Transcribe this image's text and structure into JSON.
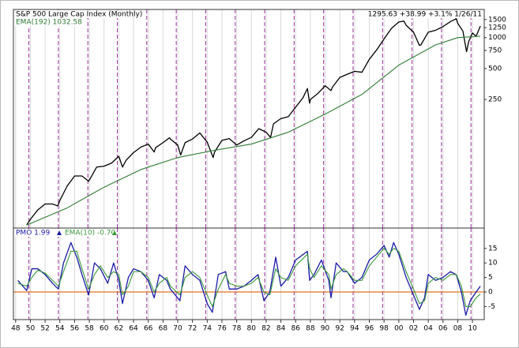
{
  "chart_data": [
    {
      "type": "line",
      "log": true,
      "annotation": "1295.63 +38.99 +3.1% 1/26/11",
      "xlim": [
        1947.7,
        2011.6
      ],
      "ylim": [
        14,
        1880
      ],
      "yticks": [
        250,
        500,
        750,
        1000,
        1250,
        1500
      ],
      "cycle_lines": [
        1949.8,
        1953.8,
        1957.8,
        1961.8,
        1965.8,
        1969.8,
        1973.8,
        1977.8,
        1981.8,
        1985.8,
        1989.8,
        1993.8,
        1997.8,
        2001.8,
        2005.8,
        2009.8
      ],
      "cycle_color": "#9b2d9b",
      "series": [
        {
          "name": "S&P 500 Large Cap Index (Monthly)",
          "color": "#000000",
          "x": [
            1949.5,
            1950,
            1951,
            1952,
            1953,
            1953.7,
            1954,
            1955,
            1956,
            1957,
            1957.9,
            1958,
            1959,
            1960,
            1961,
            1962,
            1962.5,
            1963,
            1964,
            1965,
            1966,
            1966.8,
            1967,
            1968,
            1968.9,
            1969,
            1970,
            1970.4,
            1971,
            1972,
            1973,
            1974,
            1974.8,
            1975,
            1976,
            1977,
            1978,
            1979,
            1980,
            1981,
            1982,
            1982.6,
            1983,
            1984,
            1985,
            1986,
            1987,
            1987.6,
            1987.9,
            1988,
            1989,
            1990,
            1990.8,
            1991,
            1992,
            1993,
            1994,
            1995,
            1996,
            1997,
            1998,
            1999,
            2000,
            2000.7,
            2001,
            2002,
            2002.8,
            2003,
            2004,
            2005,
            2006,
            2007,
            2007.8,
            2008,
            2008.7,
            2009.2,
            2009.5,
            2010,
            2010.5,
            2011.07
          ],
          "values": [
            15,
            17,
            21,
            24,
            24,
            23,
            26,
            36,
            45,
            45,
            40,
            41,
            55,
            56,
            60,
            70,
            55,
            64,
            76,
            86,
            92,
            77,
            85,
            95,
            106,
            103,
            90,
            72,
            95,
            103,
            118,
            96,
            68,
            77,
            100,
            104,
            90,
            99,
            107,
            130,
            120,
            107,
            145,
            163,
            170,
            210,
            260,
            320,
            230,
            250,
            285,
            340,
            305,
            330,
            410,
            440,
            470,
            460,
            615,
            760,
            970,
            1230,
            1420,
            1450,
            1320,
            1130,
            840,
            850,
            1130,
            1180,
            1280,
            1430,
            1530,
            1380,
            1160,
            730,
            920,
            1110,
            1030,
            1295.63
          ]
        },
        {
          "name": "EMA(192) 1032.58",
          "color": "#2e7d32",
          "x": [
            1949.5,
            1950,
            1955,
            1960,
            1965,
            1970,
            1975,
            1980,
            1985,
            1990,
            1995,
            2000,
            2005,
            2008,
            2011.07
          ],
          "values": [
            15,
            15.5,
            22,
            35,
            52,
            68,
            80,
            92,
            120,
            180,
            280,
            540,
            850,
            1000,
            1032.58
          ]
        }
      ]
    },
    {
      "type": "line",
      "xlim": [
        1947.7,
        2011.6
      ],
      "ylim": [
        -9.5,
        22
      ],
      "xticks": [
        {
          "value": 1948,
          "label": "48"
        },
        {
          "value": 1950,
          "label": "50"
        },
        {
          "value": 1952,
          "label": "52"
        },
        {
          "value": 1954,
          "label": "54"
        },
        {
          "value": 1956,
          "label": "56"
        },
        {
          "value": 1958,
          "label": "58"
        },
        {
          "value": 1960,
          "label": "60"
        },
        {
          "value": 1962,
          "label": "62"
        },
        {
          "value": 1964,
          "label": "64"
        },
        {
          "value": 1966,
          "label": "66"
        },
        {
          "value": 1968,
          "label": "68"
        },
        {
          "value": 1970,
          "label": "70"
        },
        {
          "value": 1972,
          "label": "72"
        },
        {
          "value": 1974,
          "label": "74"
        },
        {
          "value": 1976,
          "label": "76"
        },
        {
          "value": 1978,
          "label": "78"
        },
        {
          "value": 1980,
          "label": "80"
        },
        {
          "value": 1982,
          "label": "82"
        },
        {
          "value": 1984,
          "label": "84"
        },
        {
          "value": 1986,
          "label": "86"
        },
        {
          "value": 1988,
          "label": "88"
        },
        {
          "value": 1990,
          "label": "90"
        },
        {
          "value": 1992,
          "label": "92"
        },
        {
          "value": 1994,
          "label": "94"
        },
        {
          "value": 1996,
          "label": "96"
        },
        {
          "value": 1998,
          "label": "98"
        },
        {
          "value": 2000,
          "label": "00"
        },
        {
          "value": 2002,
          "label": "02"
        },
        {
          "value": 2004,
          "label": "04"
        },
        {
          "value": 2006,
          "label": "06"
        },
        {
          "value": 2008,
          "label": "08"
        },
        {
          "value": 2010,
          "label": "10"
        }
      ],
      "yticks": [
        -5,
        0,
        5,
        10,
        15
      ],
      "zero_line_color": "#e07020",
      "x": [
        1948.3,
        1949.5,
        1950.2,
        1951,
        1952,
        1953,
        1953.8,
        1954.5,
        1955.5,
        1956.3,
        1957,
        1957.9,
        1958.7,
        1959.5,
        1960.5,
        1961.3,
        1962,
        1962.5,
        1963.3,
        1964,
        1965,
        1966,
        1966.8,
        1967.5,
        1968.5,
        1969,
        1970.3,
        1971,
        1972,
        1973,
        1974,
        1974.7,
        1975.5,
        1976.5,
        1977,
        1978,
        1979,
        1980,
        1980.9,
        1981.7,
        1982.5,
        1983.3,
        1984,
        1985,
        1986,
        1987.6,
        1987.9,
        1988.5,
        1989.5,
        1990.5,
        1990.8,
        1991.5,
        1992.5,
        1993,
        1994,
        1995,
        1996,
        1997,
        1998,
        1998.7,
        1999.3,
        2000,
        2001,
        2002,
        2002.8,
        2003.5,
        2004,
        2005,
        2006,
        2007,
        2007.8,
        2008.5,
        2009.1,
        2009.7,
        2010.5,
        2011.07
      ],
      "series": [
        {
          "name": "PMO 1.99",
          "color": "#1a1aa8",
          "values": [
            4,
            0.5,
            8,
            8,
            6,
            3,
            1,
            10,
            17,
            12,
            6,
            -1,
            10,
            8,
            3,
            10,
            4,
            -4,
            5,
            8,
            7,
            4,
            -2,
            6,
            4,
            1,
            -3,
            9,
            6,
            4,
            -4,
            -7,
            6,
            7,
            1,
            1,
            2,
            4,
            6,
            -3,
            0,
            12,
            2,
            5,
            11,
            14,
            4,
            6,
            11,
            4,
            -2,
            10,
            7,
            7,
            3,
            5,
            11,
            13,
            16,
            12,
            17,
            13,
            5,
            -1,
            -6,
            -2,
            6,
            4,
            5,
            7,
            6,
            0,
            -8,
            -3,
            0,
            1.99
          ]
        },
        {
          "name": "EMA(10) -0.70",
          "color": "#3a9a3a",
          "values": [
            3,
            2,
            5,
            7.5,
            6.5,
            4,
            2,
            7,
            14,
            14,
            8,
            1,
            6,
            9,
            5,
            7,
            6,
            -1,
            2,
            7,
            7,
            5,
            0,
            3,
            5,
            2,
            -1,
            5,
            7,
            5,
            -1,
            -5,
            1,
            6,
            3,
            2,
            2,
            3,
            5,
            0,
            -1,
            8,
            5,
            4,
            9,
            13,
            8,
            5,
            9,
            6,
            1,
            6,
            8,
            7,
            4,
            4,
            9,
            12,
            15,
            13,
            15,
            14,
            7,
            1,
            -4,
            -3,
            3,
            5,
            4,
            6,
            6,
            2,
            -5,
            -5,
            -2,
            -0.7
          ]
        }
      ]
    }
  ]
}
